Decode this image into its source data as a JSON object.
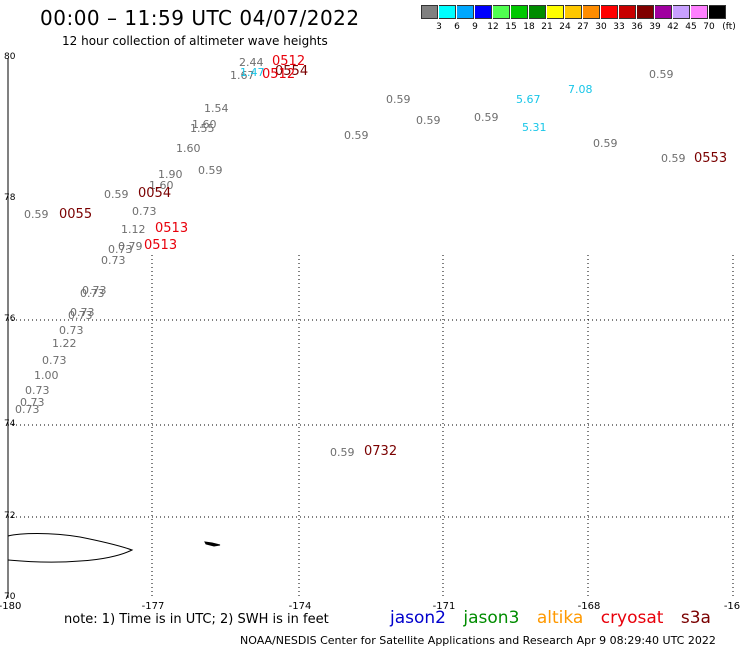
{
  "header": {
    "title": "00:00 – 11:59 UTC 04/07/2022",
    "subtitle": "12 hour collection of altimeter wave heights"
  },
  "legend": {
    "unit_label": "(ft)",
    "labels": [
      "3",
      "6",
      "9",
      "12",
      "15",
      "18",
      "21",
      "24",
      "27",
      "30",
      "33",
      "36",
      "39",
      "42",
      "45",
      "70"
    ],
    "colors": [
      "#808080",
      "#00ffff",
      "#00a8ff",
      "#0000ff",
      "#50ff50",
      "#00c800",
      "#008c00",
      "#ffff00",
      "#ffc800",
      "#ff8c00",
      "#ff0000",
      "#c80000",
      "#800000",
      "#a000a0",
      "#c8a0ff",
      "#ff80ff",
      "#000000"
    ]
  },
  "axes": {
    "lat_labels": [
      "80",
      "78",
      "76",
      "74",
      "72",
      "70"
    ],
    "lon_labels": [
      "-180",
      "-177",
      "-174",
      "-171",
      "-168",
      "-16"
    ]
  },
  "wave_values": [
    "2.44",
    "1.67",
    "1.47",
    "1.54",
    "1.60",
    "1.55",
    "1.60",
    "0.59",
    "1.90",
    "1.60",
    "0.59",
    "0.73",
    "0.59",
    "1.12",
    "0.73",
    "0.79",
    "0.73",
    "0.73",
    "0.73",
    "0.73",
    "0.73",
    "0.73",
    "1.22",
    "0.73",
    "1.00",
    "0.73",
    "0.73",
    "0.73",
    "0.59",
    "0.59",
    "0.59",
    "0.59",
    "5.67",
    "7.08",
    "5.31",
    "0.59",
    "0.59",
    "0.59",
    "0.59"
  ],
  "times": [
    "0512",
    "0554",
    "0512",
    "0054",
    "0055",
    "0513",
    "0513",
    "0553",
    "0732"
  ],
  "footer": {
    "note": "note:  1) Time is in UTC;  2) SWH is in feet",
    "satellites": [
      {
        "name": "jason2",
        "color": "#0000cc"
      },
      {
        "name": "jason3",
        "color": "#008c00"
      },
      {
        "name": "altika",
        "color": "#ff9900"
      },
      {
        "name": "cryosat",
        "color": "#e8000b"
      },
      {
        "name": "s3a",
        "color": "#7a0000"
      }
    ],
    "credit": "NOAA/NESDIS Center for Satellite Applications and Research    Apr  9 08:29:40 UTC 2022"
  }
}
